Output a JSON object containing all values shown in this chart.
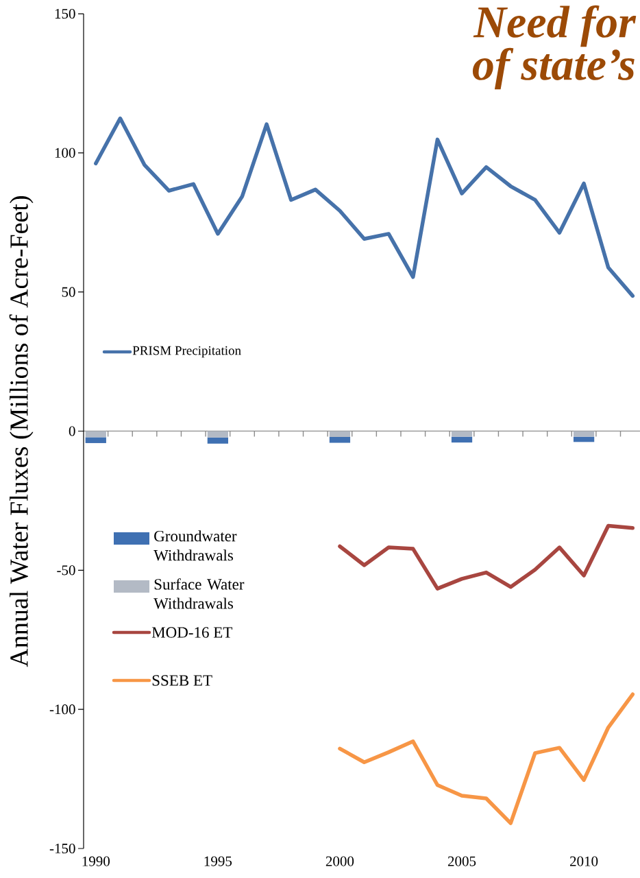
{
  "chart_data": {
    "type": "line",
    "ylabel": "Annual Water Fluxes (Millions of Acre-Feet)",
    "annotations": [
      "Need for",
      "of state’s"
    ],
    "xlim": [
      1989.5,
      2012.3
    ],
    "xticks": [
      1990,
      1995,
      2000,
      2005,
      2010,
      {
        "value": 1990.5,
        "label": null
      },
      {
        "value": 1991.5,
        "label": null
      },
      {
        "value": 1992.5,
        "label": null
      },
      {
        "value": 1993.5,
        "label": null
      },
      {
        "value": 1994.5,
        "label": null
      },
      {
        "value": 1995.5,
        "label": null
      },
      {
        "value": 1996.5,
        "label": null
      },
      {
        "value": 1997.5,
        "label": null
      },
      {
        "value": 1998.5,
        "label": null
      },
      {
        "value": 1999.5,
        "label": null
      },
      {
        "value": 2000.5,
        "label": null
      },
      {
        "value": 2001.5,
        "label": null
      },
      {
        "value": 2002.5,
        "label": null
      },
      {
        "value": 2003.5,
        "label": null
      },
      {
        "value": 2004.5,
        "label": null
      },
      {
        "value": 2005.5,
        "label": null
      },
      {
        "value": 2006.5,
        "label": null
      },
      {
        "value": 2007.5,
        "label": null
      },
      {
        "value": 2008.5,
        "label": null
      },
      {
        "value": 2009.5,
        "label": null
      },
      {
        "value": 2010.5,
        "label": null
      },
      {
        "value": 2011.5,
        "label": null
      }
    ],
    "ylim": [
      -150,
      150
    ],
    "yticks": [
      -150,
      -100,
      -50,
      0,
      50,
      100,
      150
    ],
    "legend": "left",
    "stacked": true,
    "line_style": "solid",
    "series": [
      {
        "name": "PRISM Precipitation",
        "color": "#4672aa",
        "x": [
          1990,
          1991,
          1992,
          1993,
          1994,
          1995,
          1996,
          1997,
          1998,
          1999,
          2000,
          2001,
          2002,
          2003,
          2004,
          2005,
          2006,
          2007,
          2008,
          2009,
          2010,
          2011,
          2012
        ],
        "values": [
          96.2,
          112.4,
          95.6,
          86.4,
          88.8,
          70.9,
          84.4,
          110.3,
          83.1,
          86.8,
          79.2,
          69.1,
          70.9,
          55.4,
          104.8,
          85.4,
          94.9,
          88.0,
          83.1,
          71.3,
          89.0,
          58.8,
          48.6
        ]
      },
      {
        "name": "Surface Water Withdrawals",
        "type": "bar",
        "color": "#b3bac5",
        "x": [
          1990,
          1995,
          2000,
          2005,
          2010
        ],
        "values": [
          -2.2,
          -2.3,
          -2.1,
          -2.0,
          -2.0
        ]
      },
      {
        "name": "Groundwater Withdrawals",
        "type": "bar",
        "color": "#3f70b2",
        "x": [
          1990,
          1995,
          2000,
          2005,
          2010
        ],
        "values": [
          -2.1,
          -2.2,
          -2.1,
          -2.1,
          -1.9
        ]
      },
      {
        "name": "MOD-16 ET",
        "color": "#a84640",
        "x": [
          2000,
          2001,
          2002,
          2003,
          2004,
          2005,
          2006,
          2007,
          2008,
          2009,
          2010,
          2011,
          2012
        ],
        "values": [
          -41.4,
          -48.2,
          -41.8,
          -42.3,
          -56.6,
          -53.1,
          -50.8,
          -56.0,
          -49.8,
          -41.8,
          -51.9,
          -34.0,
          -34.8
        ]
      },
      {
        "name": "SSEB ET",
        "color": "#f79646",
        "x": [
          2000,
          2001,
          2002,
          2003,
          2004,
          2005,
          2006,
          2007,
          2008,
          2009,
          2010,
          2011,
          2012
        ],
        "values": [
          -114.1,
          -119.0,
          -115.4,
          -111.5,
          -127.2,
          -131.0,
          -132.0,
          -140.9,
          -115.7,
          -113.8,
          -125.4,
          -106.5,
          -94.6
        ]
      }
    ]
  }
}
